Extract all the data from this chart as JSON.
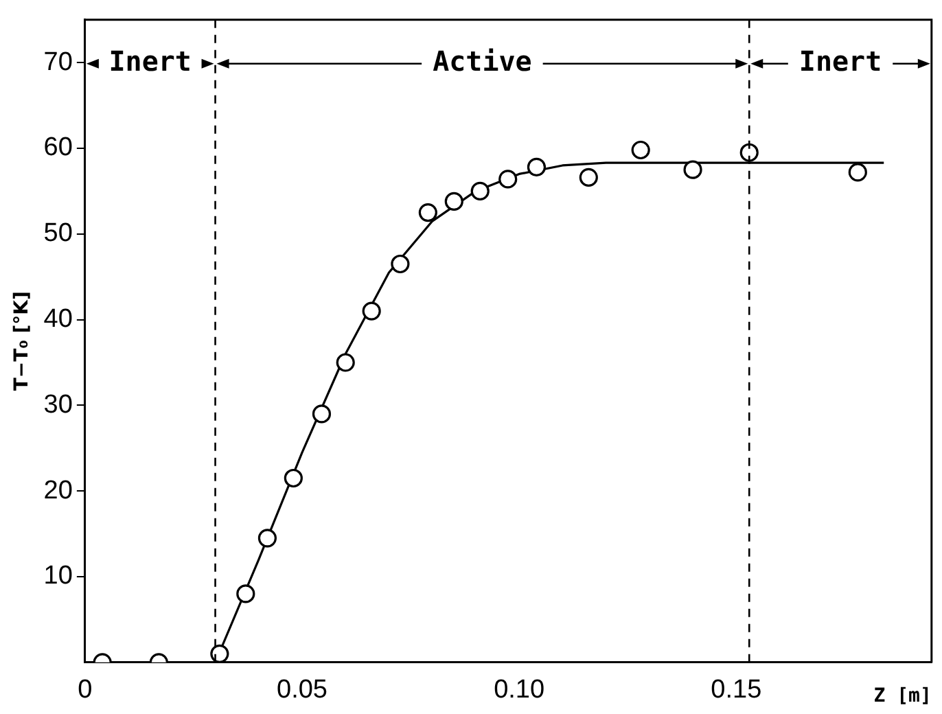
{
  "chart_data": {
    "type": "scatter",
    "xlabel": "Z [m]",
    "ylabel": "T−T₀ [°K]",
    "x": [
      0.004,
      0.017,
      0.031,
      0.037,
      0.042,
      0.048,
      0.0545,
      0.06,
      0.066,
      0.0726,
      0.079,
      0.085,
      0.091,
      0.0974,
      0.104,
      0.116,
      0.128,
      0.14,
      0.153,
      0.178
    ],
    "series": [
      {
        "color": "#000000",
        "marker": "circle",
        "values": [
          0,
          0,
          1,
          8,
          14.5,
          21.5,
          29,
          35,
          41,
          46.5,
          52.5,
          53.8,
          55,
          56.4,
          57.8,
          56.6,
          59.8,
          57.5,
          59.5,
          57.2
        ]
      },
      {
        "type": "line",
        "color": "#000000",
        "marker": "none",
        "line_style": "solid",
        "x": [
          0.03,
          0.04,
          0.05,
          0.06,
          0.07,
          0.08,
          0.09,
          0.1,
          0.11,
          0.12,
          0.184
        ],
        "values": [
          0,
          12,
          24.5,
          36,
          45.5,
          51.5,
          55,
          57,
          58,
          58.3,
          58.3
        ]
      }
    ],
    "xlim": [
      0,
      0.195
    ],
    "xticks": [
      0,
      {
        "value": 0.05,
        "label": "0.05"
      },
      {
        "value": 0.1,
        "label": "0.10"
      },
      {
        "value": 0.15,
        "label": "0.15"
      }
    ],
    "ylim": [
      0,
      75
    ],
    "yticks": [
      10,
      20,
      30,
      40,
      50,
      60,
      70
    ],
    "grid": false,
    "legend": false,
    "ref_lines": [
      {
        "axis": "x",
        "value": 0.03,
        "color": "#000000",
        "line_style": "dashed"
      },
      {
        "axis": "x",
        "value": 0.153,
        "color": "#000000",
        "line_style": "dashed"
      }
    ],
    "annotations": [
      "Inert",
      "Active",
      "Inert"
    ]
  }
}
